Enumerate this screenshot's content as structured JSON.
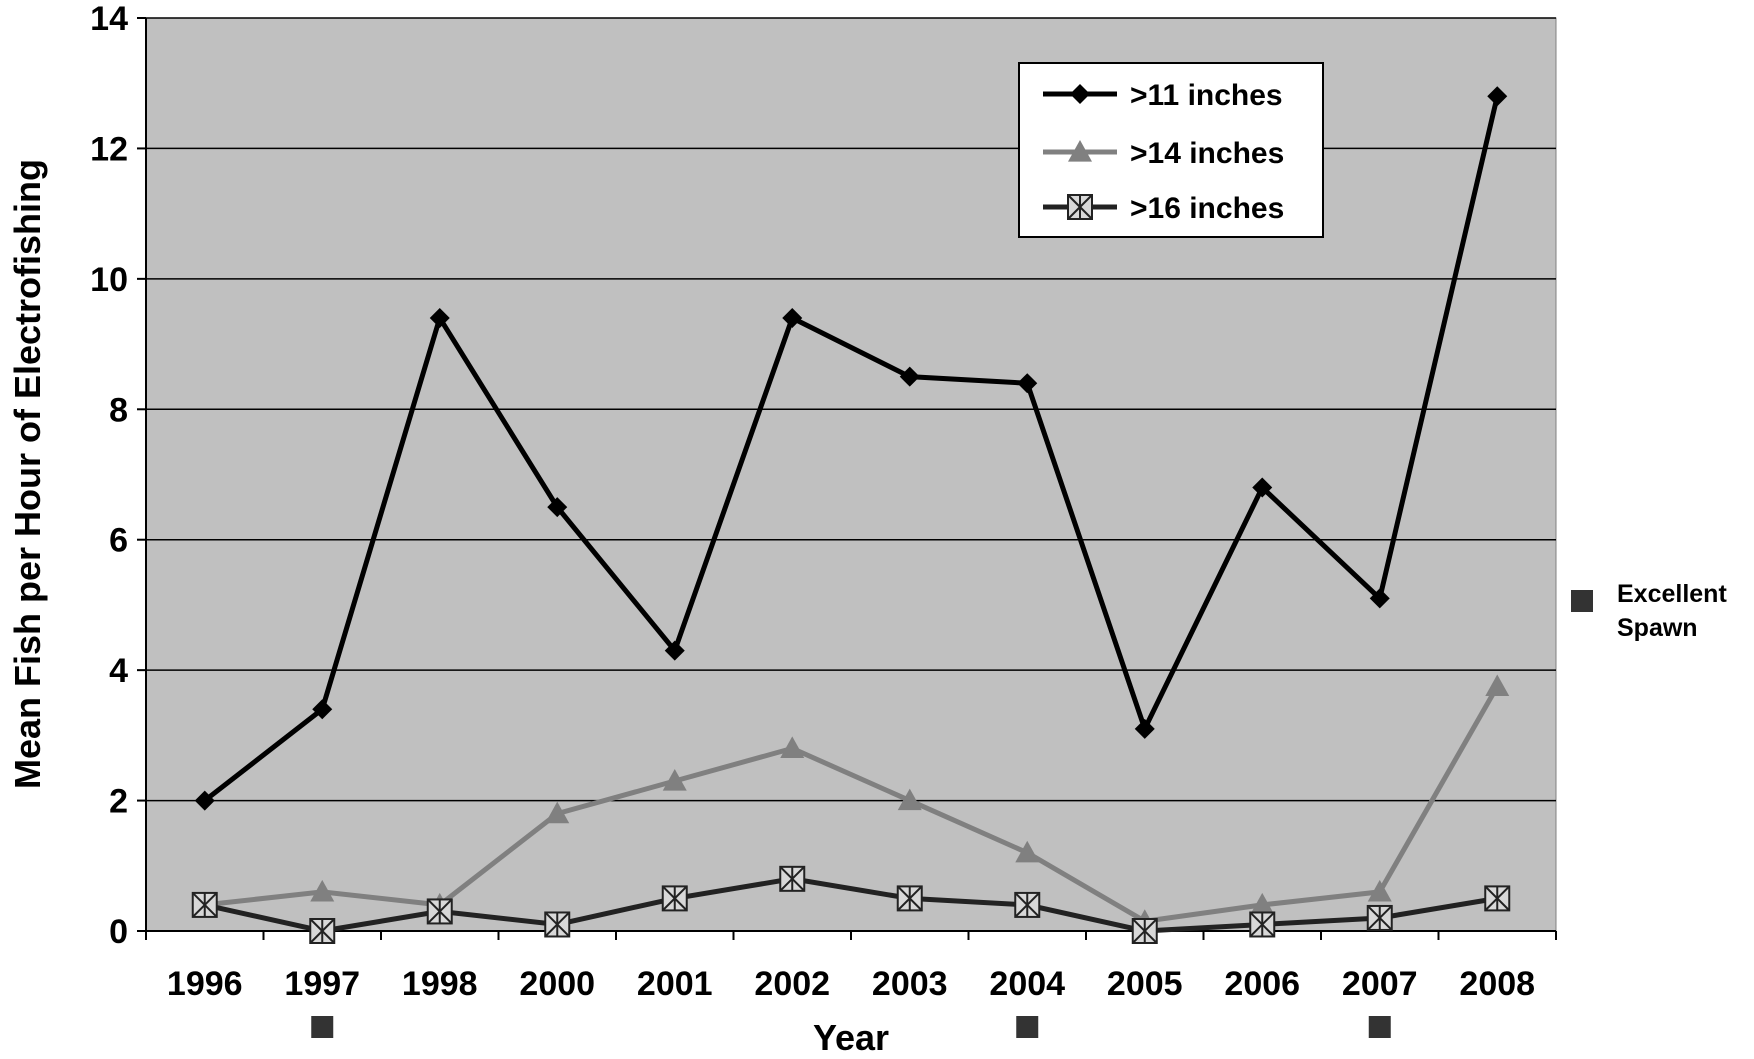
{
  "chart_data": {
    "type": "line",
    "title": "",
    "xlabel": "Year",
    "ylabel": "Mean Fish per Hour of Electrofishing",
    "categories": [
      "1996",
      "1997",
      "1998",
      "2000",
      "2001",
      "2002",
      "2003",
      "2004",
      "2005",
      "2006",
      "2007",
      "2008"
    ],
    "ylim": [
      0,
      14
    ],
    "yticks": [
      0,
      2,
      4,
      6,
      8,
      10,
      12,
      14
    ],
    "grid": true,
    "plot_background": "#c0c0c0",
    "legend_position": "top-right",
    "series": [
      {
        "name": ">11 inches",
        "marker": "diamond",
        "color": "#000000",
        "values": [
          2.0,
          3.4,
          9.4,
          6.5,
          4.3,
          9.4,
          8.5,
          8.4,
          3.1,
          6.8,
          5.1,
          12.8
        ]
      },
      {
        "name": ">14 inches",
        "marker": "triangle",
        "color": "#808080",
        "values": [
          0.4,
          0.6,
          0.4,
          1.8,
          2.3,
          2.8,
          2.0,
          1.2,
          0.15,
          0.4,
          0.6,
          3.75
        ]
      },
      {
        "name": ">16 inches",
        "marker": "boxed-asterisk",
        "color": "#222222",
        "values": [
          0.4,
          0.0,
          0.3,
          0.1,
          0.5,
          0.8,
          0.5,
          0.4,
          0.0,
          0.1,
          0.2,
          0.5
        ]
      }
    ],
    "excellent_spawn_years": [
      "1997",
      "2004",
      "2007"
    ],
    "side_legend": {
      "line1": "Excellent",
      "line2": "Spawn",
      "color": "#333333"
    }
  }
}
